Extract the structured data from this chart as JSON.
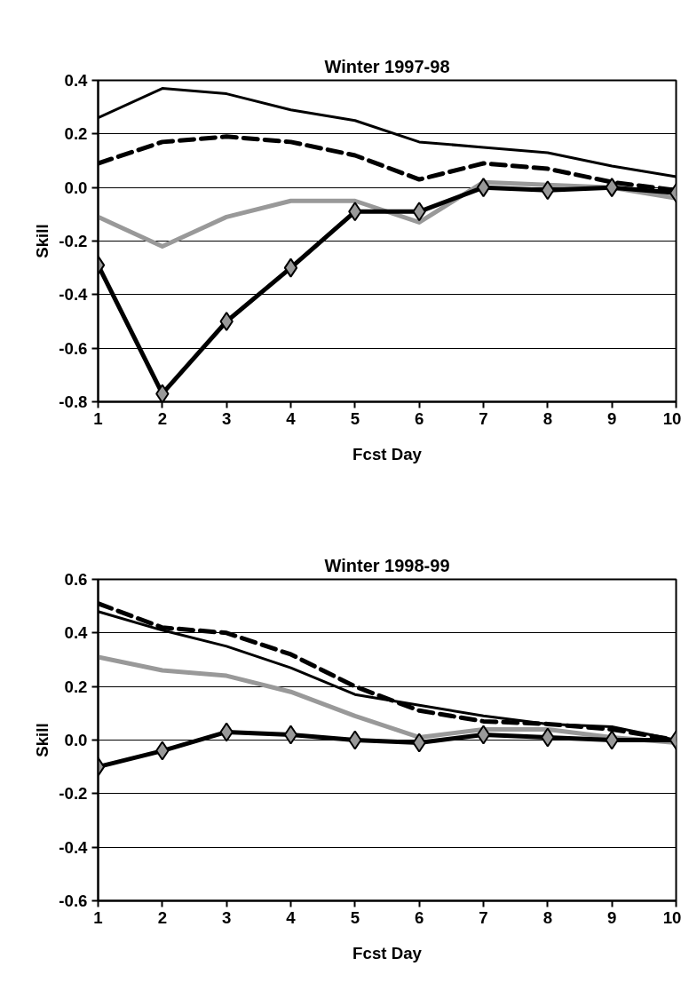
{
  "chart_data": [
    {
      "type": "line",
      "title": "Winter 1997-98",
      "xlabel": "Fcst Day",
      "ylabel": "Skill",
      "x": [
        1,
        2,
        3,
        4,
        5,
        6,
        7,
        8,
        9,
        10
      ],
      "xlim": [
        1,
        10
      ],
      "xticks": [
        1,
        2,
        3,
        4,
        5,
        6,
        7,
        8,
        9,
        10
      ],
      "ylim": [
        -0.8,
        0.4
      ],
      "yticks": [
        {
          "value": -0.8,
          "label": "-0.8"
        },
        {
          "value": -0.6,
          "label": "-0.6"
        },
        {
          "value": -0.4,
          "label": "-0.4"
        },
        {
          "value": -0.2,
          "label": "-0.2"
        },
        {
          "value": 0,
          "label": "0.0"
        },
        {
          "value": 0.2,
          "label": "0.2"
        },
        {
          "value": 0.4,
          "label": "0.4"
        }
      ],
      "grid": "y",
      "series": [
        {
          "color": "#000000",
          "line_style": "solid",
          "marker": "none",
          "values": [
            0.26,
            0.37,
            0.35,
            0.29,
            0.25,
            0.17,
            0.15,
            0.13,
            0.08,
            0.04
          ]
        },
        {
          "color": "#000000",
          "line_style": "dashed",
          "marker": "none",
          "values": [
            0.09,
            0.17,
            0.19,
            0.17,
            0.12,
            0.03,
            0.09,
            0.07,
            0.02,
            -0.01
          ]
        },
        {
          "color": "#999999",
          "line_style": "solid",
          "marker": "none",
          "values": [
            -0.11,
            -0.22,
            -0.11,
            -0.05,
            -0.05,
            -0.13,
            0.02,
            0.01,
            0.0,
            -0.04
          ]
        },
        {
          "color": "#000000",
          "line_style": "solid",
          "marker": "diamond",
          "values": [
            -0.29,
            -0.77,
            -0.5,
            -0.3,
            -0.09,
            -0.09,
            0.0,
            -0.01,
            0.0,
            -0.02
          ]
        }
      ]
    },
    {
      "type": "line",
      "title": "Winter 1998-99",
      "xlabel": "Fcst Day",
      "ylabel": "Skill",
      "x": [
        1,
        2,
        3,
        4,
        5,
        6,
        7,
        8,
        9,
        10
      ],
      "xlim": [
        1,
        10
      ],
      "xticks": [
        1,
        2,
        3,
        4,
        5,
        6,
        7,
        8,
        9,
        10
      ],
      "ylim": [
        -0.6,
        0.6
      ],
      "yticks": [
        {
          "value": -0.6,
          "label": "-0.6"
        },
        {
          "value": -0.4,
          "label": "-0.4"
        },
        {
          "value": -0.2,
          "label": "-0.2"
        },
        {
          "value": 0,
          "label": "0.0"
        },
        {
          "value": 0.2,
          "label": "0.2"
        },
        {
          "value": 0.4,
          "label": "0.4"
        },
        {
          "value": 0.6,
          "label": "0.6"
        }
      ],
      "grid": "y",
      "series": [
        {
          "color": "#000000",
          "line_style": "solid",
          "marker": "none",
          "values": [
            0.48,
            0.41,
            0.35,
            0.27,
            0.17,
            0.13,
            0.09,
            0.06,
            0.05,
            0.0
          ]
        },
        {
          "color": "#000000",
          "line_style": "dashed",
          "marker": "none",
          "values": [
            0.51,
            0.42,
            0.4,
            0.32,
            0.2,
            0.11,
            0.07,
            0.06,
            0.04,
            0.0
          ]
        },
        {
          "color": "#999999",
          "line_style": "solid",
          "marker": "none",
          "values": [
            0.31,
            0.26,
            0.24,
            0.18,
            0.09,
            0.01,
            0.04,
            0.04,
            0.01,
            -0.01
          ]
        },
        {
          "color": "#000000",
          "line_style": "solid",
          "marker": "diamond",
          "values": [
            -0.1,
            -0.04,
            0.03,
            0.02,
            0.0,
            -0.01,
            0.02,
            0.01,
            0.0,
            0.0
          ]
        }
      ]
    }
  ]
}
